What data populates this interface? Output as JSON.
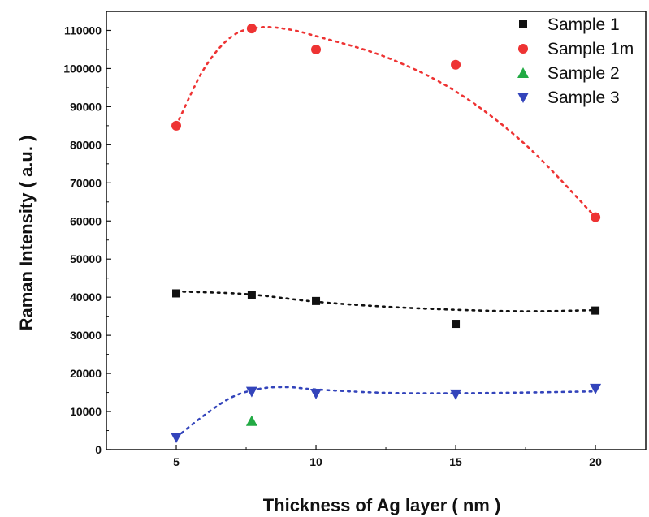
{
  "chart_data": {
    "type": "scatter",
    "xlabel": "Thickness of Ag layer ( nm )",
    "ylabel": "Raman Intensity ( a.u. )",
    "xlim": [
      2.5,
      21.8
    ],
    "ylim": [
      0,
      115000
    ],
    "xticks": [
      5,
      10,
      15,
      20
    ],
    "yticks": [
      0,
      10000,
      20000,
      30000,
      40000,
      50000,
      60000,
      70000,
      80000,
      90000,
      100000,
      110000
    ],
    "legend_position": "top-right",
    "grid": false,
    "series": [
      {
        "name": "Sample 1",
        "marker": "square",
        "color": "#111111",
        "points": [
          [
            5,
            41000
          ],
          [
            7.7,
            40500
          ],
          [
            10,
            39000
          ],
          [
            15,
            33000
          ],
          [
            20,
            36500
          ]
        ],
        "trend": [
          [
            5,
            41500
          ],
          [
            7.5,
            40800
          ],
          [
            10,
            38800
          ],
          [
            12.5,
            37500
          ],
          [
            15,
            36700
          ],
          [
            17.5,
            36300
          ],
          [
            20,
            36600
          ]
        ]
      },
      {
        "name": "Sample 1m",
        "marker": "circle",
        "color": "#ee3333",
        "points": [
          [
            5,
            85000
          ],
          [
            7.7,
            110500
          ],
          [
            10,
            105000
          ],
          [
            15,
            101000
          ],
          [
            20,
            61000
          ]
        ],
        "trend": [
          [
            5,
            85000
          ],
          [
            6,
            100000
          ],
          [
            7,
            108500
          ],
          [
            8,
            110800
          ],
          [
            9,
            110300
          ],
          [
            10,
            108500
          ],
          [
            12.5,
            103000
          ],
          [
            15,
            94000
          ],
          [
            17.5,
            80000
          ],
          [
            20,
            61000
          ]
        ]
      },
      {
        "name": "Sample 2",
        "marker": "triangle-up",
        "color": "#22aa44",
        "points": [
          [
            7.7,
            7500
          ]
        ]
      },
      {
        "name": "Sample 3",
        "marker": "triangle-down",
        "color": "#3344bb",
        "points": [
          [
            5,
            3200
          ],
          [
            7.7,
            15200
          ],
          [
            10,
            14700
          ],
          [
            15,
            14500
          ],
          [
            20,
            16000
          ]
        ],
        "trend": [
          [
            5,
            3200
          ],
          [
            6,
            9000
          ],
          [
            7,
            13800
          ],
          [
            8,
            16000
          ],
          [
            9,
            16400
          ],
          [
            10,
            15800
          ],
          [
            12.5,
            14900
          ],
          [
            15,
            14800
          ],
          [
            17.5,
            15000
          ],
          [
            20,
            15300
          ]
        ]
      }
    ]
  }
}
